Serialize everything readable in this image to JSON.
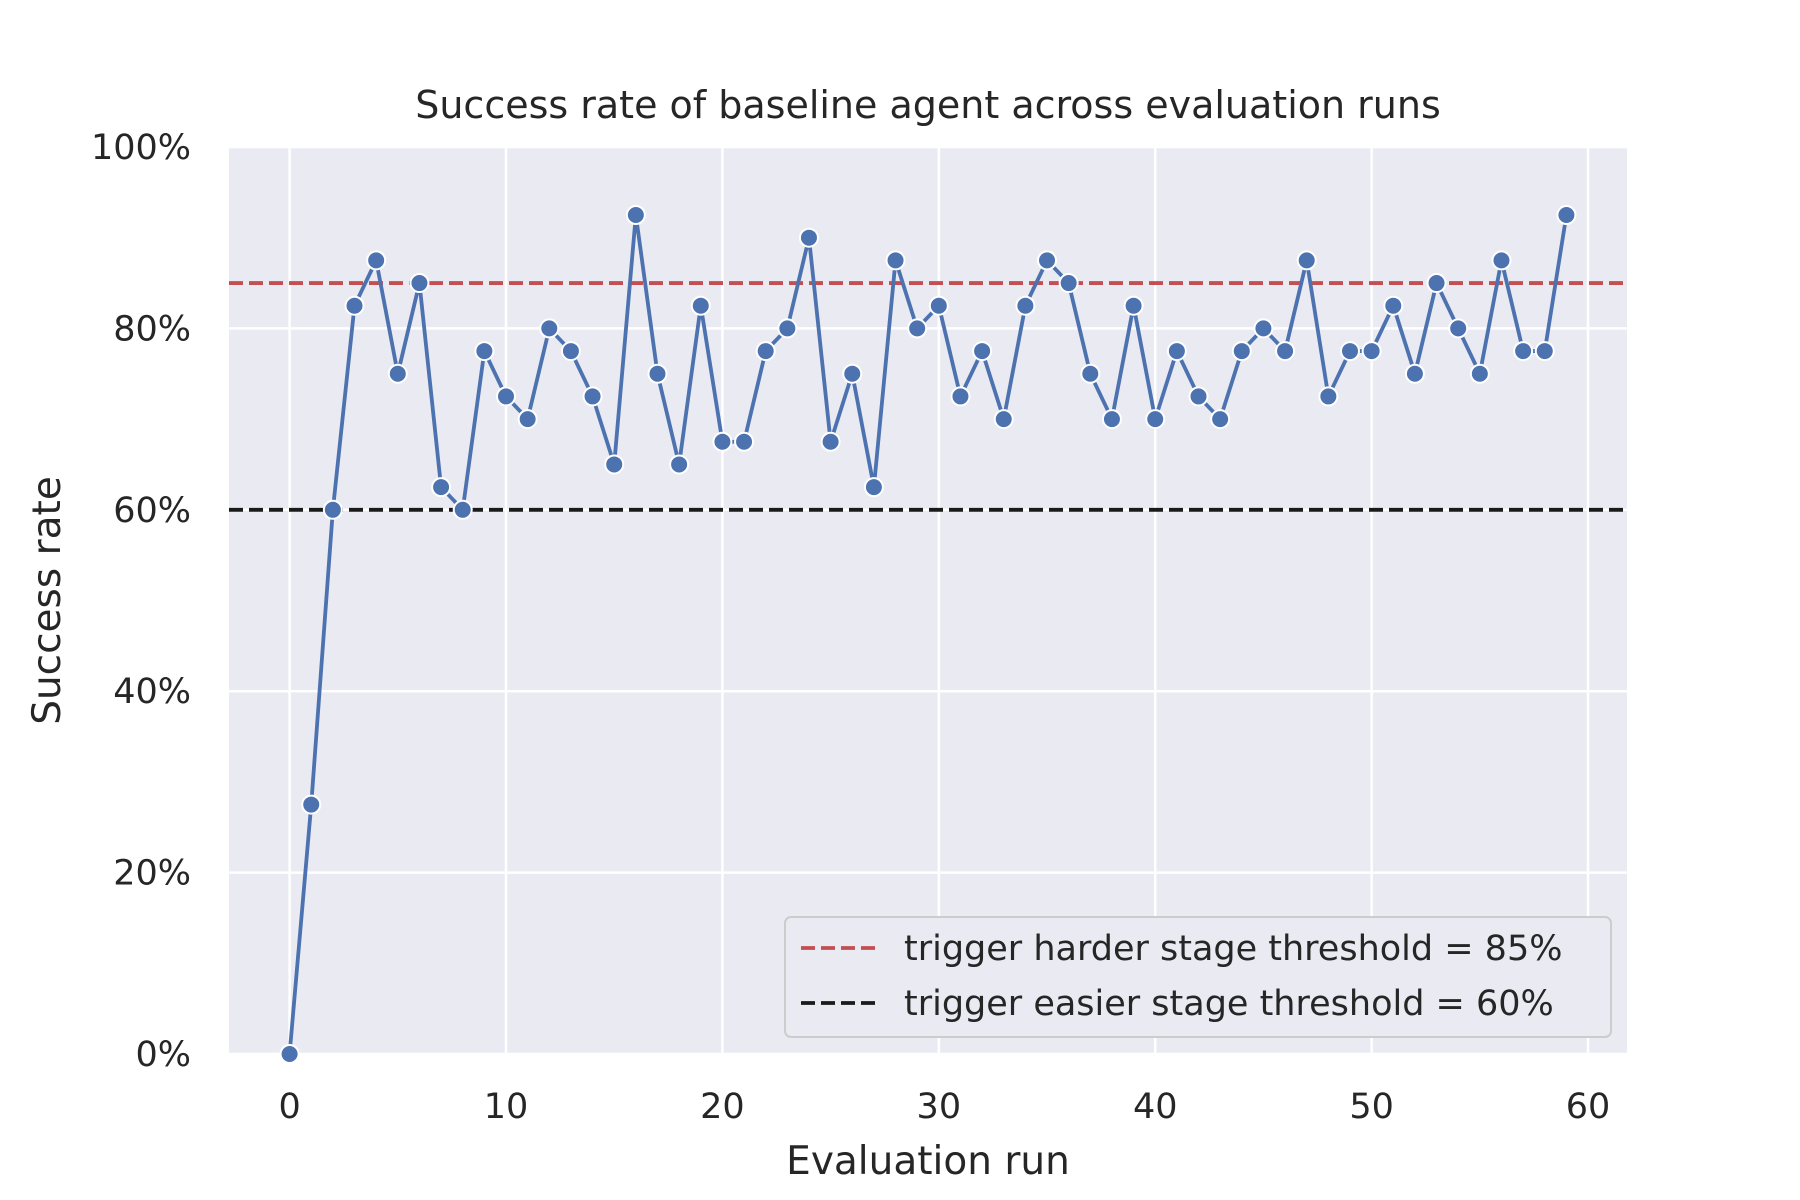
{
  "chart_data": {
    "type": "line",
    "title": "Success rate of baseline agent across evaluation runs",
    "xlabel": "Evaluation run",
    "ylabel": "Success rate",
    "xlim": [
      -2.8,
      61.8
    ],
    "ylim": [
      0,
      100
    ],
    "x_ticks": [
      0,
      10,
      20,
      30,
      40,
      50,
      60
    ],
    "x_tick_labels": [
      "0",
      "10",
      "20",
      "30",
      "40",
      "50",
      "60"
    ],
    "y_ticks": [
      0,
      20,
      40,
      60,
      80,
      100
    ],
    "y_tick_labels": [
      "0%",
      "20%",
      "40%",
      "60%",
      "80%",
      "100%"
    ],
    "grid": true,
    "legend_position": "bottom-right",
    "colors": {
      "background": "#eaeaf2",
      "grid": "#ffffff",
      "series": "#4c72b0",
      "harder_threshold": "#c44e52",
      "easier_threshold": "#1a1a1a"
    },
    "series": [
      {
        "x": [
          0,
          1,
          2,
          3,
          4,
          5,
          6,
          7,
          8,
          9,
          10,
          11,
          12,
          13,
          14,
          15,
          16,
          17,
          18,
          19,
          20,
          21,
          22,
          23,
          24,
          25,
          26,
          27,
          28,
          29,
          30,
          31,
          32,
          33,
          34,
          35,
          36,
          37,
          38,
          39,
          40,
          41,
          42,
          43,
          44,
          45,
          46,
          47,
          48,
          49,
          50,
          51,
          52,
          53,
          54,
          55,
          56,
          57,
          58,
          59
        ],
        "values": [
          0,
          27.5,
          60,
          82.5,
          87.5,
          75,
          85,
          62.5,
          60,
          77.5,
          72.5,
          70,
          80,
          77.5,
          72.5,
          65,
          92.5,
          75,
          65,
          82.5,
          67.5,
          67.5,
          77.5,
          80,
          90,
          67.5,
          75,
          62.5,
          87.5,
          80,
          82.5,
          72.5,
          77.5,
          70,
          82.5,
          87.5,
          85,
          75,
          70,
          82.5,
          70,
          77.5,
          72.5,
          70,
          77.5,
          80,
          77.5,
          87.5,
          72.5,
          77.5,
          77.5,
          82.5,
          75,
          85,
          80,
          75,
          87.5,
          77.5,
          77.5,
          92.5
        ]
      }
    ],
    "reference_lines": [
      {
        "name": "trigger harder stage threshold = 85%",
        "y": 85,
        "style": "dashed",
        "color": "#c44e52"
      },
      {
        "name": "trigger easier stage threshold = 60%",
        "y": 60,
        "style": "dashed",
        "color": "#1a1a1a"
      }
    ]
  }
}
